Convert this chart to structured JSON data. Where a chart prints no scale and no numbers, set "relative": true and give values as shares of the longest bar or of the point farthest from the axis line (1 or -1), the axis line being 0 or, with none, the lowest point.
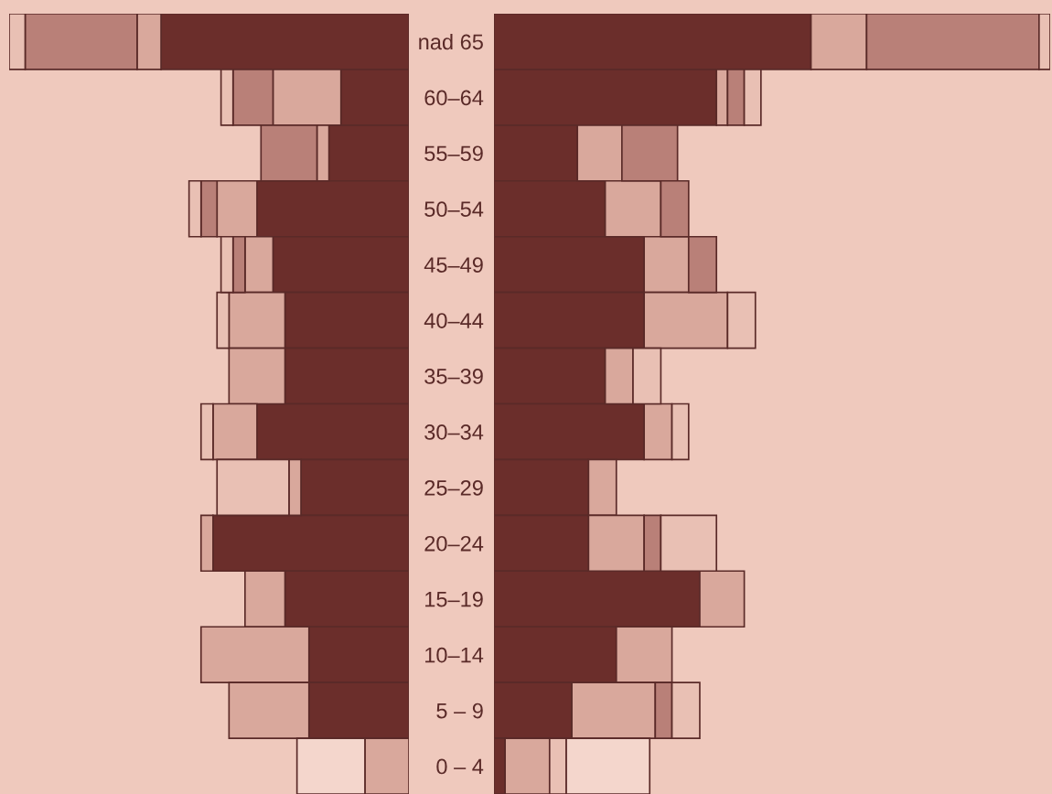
{
  "chart_data": [
    {
      "type": "bar",
      "orientation": "horizontal",
      "stacked": true,
      "relative": true,
      "categories": [
        null,
        null,
        null,
        null,
        null,
        null,
        null,
        null,
        null,
        null,
        null,
        null,
        null,
        null
      ],
      "series": [
        {
          "values": [
            -0.62,
            -0.17,
            -0.2,
            -0.38,
            -0.34,
            -0.31,
            -0.31,
            -0.38,
            -0.27,
            -0.49,
            -0.31,
            -0.25,
            -0.25,
            -0.11
          ],
          "colors": [
            "#6b2e2b",
            "#6b2e2b",
            "#6b2e2b",
            "#6b2e2b",
            "#6b2e2b",
            "#6b2e2b",
            "#6b2e2b",
            "#6b2e2b",
            "#6b2e2b",
            "#6b2e2b",
            "#6b2e2b",
            "#6b2e2b",
            "#6b2e2b",
            "#d9a89c"
          ]
        },
        {
          "values": [
            -0.06,
            -0.17,
            -0.03,
            -0.1,
            -0.07,
            -0.14,
            -0.14,
            -0.11,
            -0.03,
            -0.03,
            -0.1,
            -0.27,
            -0.2,
            -0.17
          ],
          "colors": [
            "#d9a89c",
            "#d9a89c",
            "#d9a89c",
            "#d9a89c",
            "#d9a89c",
            "#d9a89c",
            "#d9a89c",
            "#d9a89c",
            "#d9a89c",
            "#d9a89c",
            "#d9a89c",
            "#d9a89c",
            "#d9a89c",
            "#f4d6cc"
          ]
        },
        {
          "values": [
            -0.28,
            -0.1,
            -0.14,
            -0.04,
            -0.03,
            -0.03,
            null,
            -0.03,
            -0.18,
            null,
            null,
            null,
            null,
            null
          ],
          "colors": [
            "#b98078",
            "#b98078",
            "#b98078",
            "#b98078",
            "#b98078",
            "#e9c0b4",
            null,
            "#e9c0b4",
            "#e9c0b4",
            null,
            null,
            null,
            null,
            null
          ]
        },
        {
          "values": [
            -0.04,
            -0.03,
            null,
            -0.03,
            -0.03,
            null,
            null,
            null,
            null,
            null,
            null,
            null,
            null,
            null
          ],
          "colors": [
            "#e9c0b4",
            "#e9c0b4",
            null,
            "#e9c0b4",
            "#e9c0b4",
            null,
            null,
            null,
            null,
            null,
            null,
            null,
            null,
            null
          ]
        }
      ]
    },
    {
      "type": "bar",
      "orientation": "horizontal",
      "stacked": true,
      "relative": true,
      "tick_labels": "y",
      "categories": [
        "nad 65",
        "60–64",
        "55–59",
        "50–54",
        "45–49",
        "40–44",
        "35–39",
        "30–34",
        "25–29",
        "20–24",
        "15–19",
        "10–14",
        "5 – 9",
        "0 – 4"
      ],
      "series": [
        {
          "values": [
            0.57,
            0.4,
            0.15,
            0.2,
            0.27,
            0.27,
            0.2,
            0.27,
            0.17,
            0.17,
            0.37,
            0.22,
            0.14,
            0.02
          ],
          "colors": [
            "#6b2e2b",
            "#6b2e2b",
            "#6b2e2b",
            "#6b2e2b",
            "#6b2e2b",
            "#6b2e2b",
            "#6b2e2b",
            "#6b2e2b",
            "#6b2e2b",
            "#6b2e2b",
            "#6b2e2b",
            "#6b2e2b",
            "#6b2e2b",
            "#6b2e2b"
          ]
        },
        {
          "values": [
            0.1,
            0.02,
            0.08,
            0.1,
            0.08,
            0.15,
            0.05,
            0.05,
            0.05,
            0.1,
            0.08,
            0.1,
            0.15,
            0.08
          ],
          "colors": [
            "#d9a89c",
            "#d9a89c",
            "#d9a89c",
            "#d9a89c",
            "#d9a89c",
            "#d9a89c",
            "#d9a89c",
            "#d9a89c",
            "#d9a89c",
            "#d9a89c",
            "#d9a89c",
            "#d9a89c",
            "#d9a89c",
            "#d9a89c"
          ]
        },
        {
          "values": [
            0.31,
            0.03,
            0.1,
            0.05,
            0.05,
            0.05,
            0.05,
            0.03,
            null,
            0.03,
            null,
            null,
            0.03,
            0.03
          ],
          "colors": [
            "#b98078",
            "#b98078",
            "#b98078",
            "#b98078",
            "#b98078",
            "#e9c0b4",
            "#e9c0b4",
            "#e9c0b4",
            null,
            "#b98078",
            null,
            null,
            "#b98078",
            "#e9c0b4"
          ]
        },
        {
          "values": [
            0.02,
            0.03,
            null,
            null,
            null,
            null,
            null,
            null,
            null,
            0.1,
            null,
            null,
            0.05,
            0.15
          ],
          "colors": [
            "#e9c0b4",
            "#e9c0b4",
            null,
            null,
            null,
            null,
            null,
            null,
            null,
            "#e9c0b4",
            null,
            null,
            "#e9c0b4",
            "#f4d6cc"
          ]
        }
      ]
    }
  ]
}
